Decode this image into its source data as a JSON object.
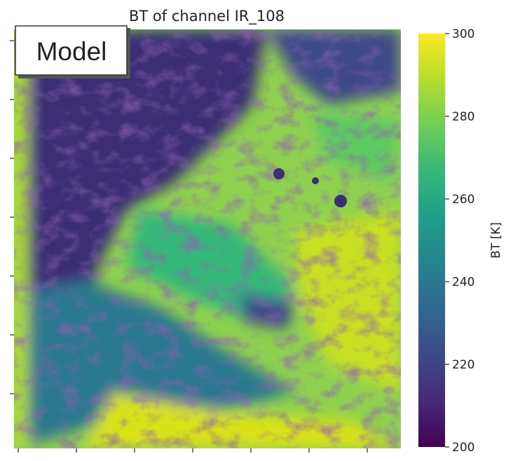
{
  "chart_data": {
    "type": "image",
    "title": "BT of channel IR_108",
    "annotation": "Model",
    "colormap": "viridis",
    "colorbar_label": "BT [K]",
    "clim": [
      200,
      300
    ],
    "cticks": [
      200,
      220,
      240,
      260,
      280,
      300
    ]
  }
}
